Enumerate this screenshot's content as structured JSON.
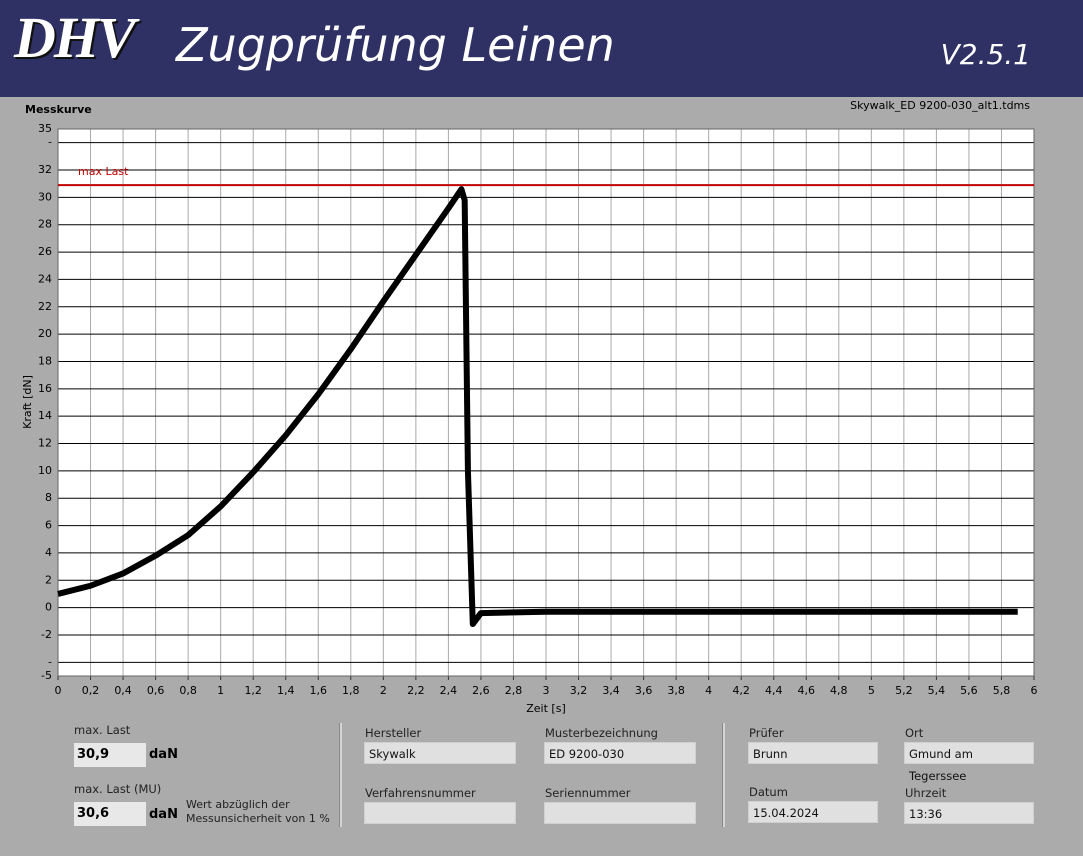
{
  "header": {
    "logo": "DHV",
    "title": "Zugprüfung Leinen",
    "version": "V2.5.1"
  },
  "chart_data": {
    "type": "line",
    "title": "Messkurve",
    "subtitle": "Skywalk_ED 9200-030_alt1.tdms",
    "x_label": "Zeit [s]",
    "y_label": "Kraft [dN]",
    "color": "#000000",
    "grid": true,
    "x": [
      0,
      0.2,
      0.4,
      0.6,
      0.8,
      1.0,
      1.2,
      1.4,
      1.6,
      1.8,
      2.0,
      2.2,
      2.4,
      2.48,
      2.5,
      2.52,
      2.55,
      2.6,
      3.0,
      3.5,
      4.0,
      4.5,
      5.0,
      5.5,
      5.9
    ],
    "values": [
      1.0,
      1.6,
      2.5,
      3.8,
      5.3,
      7.4,
      9.9,
      12.6,
      15.6,
      18.9,
      22.4,
      25.8,
      29.2,
      30.6,
      29.8,
      10,
      -1.2,
      -0.4,
      -0.3,
      -0.3,
      -0.3,
      -0.3,
      -0.3,
      -0.3,
      -0.3
    ],
    "xlim": [
      0,
      6
    ],
    "ylim": [
      -5,
      35
    ],
    "xticks": [
      0,
      {
        "value": 0.2,
        "label": "0,2"
      },
      {
        "value": 0.4,
        "label": "0,4"
      },
      {
        "value": 0.6,
        "label": "0,6"
      },
      {
        "value": 0.8,
        "label": "0,8"
      },
      1,
      {
        "value": 1.2,
        "label": "1,2"
      },
      {
        "value": 1.4,
        "label": "1,4"
      },
      {
        "value": 1.6,
        "label": "1,6"
      },
      {
        "value": 1.8,
        "label": "1,8"
      },
      2,
      {
        "value": 2.2,
        "label": "2,2"
      },
      {
        "value": 2.4,
        "label": "2,4"
      },
      {
        "value": 2.6,
        "label": "2,6"
      },
      {
        "value": 2.8,
        "label": "2,8"
      },
      3,
      {
        "value": 3.2,
        "label": "3,2"
      },
      {
        "value": 3.4,
        "label": "3,4"
      },
      {
        "value": 3.6,
        "label": "3,6"
      },
      {
        "value": 3.8,
        "label": "3,8"
      },
      4,
      {
        "value": 4.2,
        "label": "4,2"
      },
      {
        "value": 4.4,
        "label": "4,4"
      },
      {
        "value": 4.6,
        "label": "4,6"
      },
      {
        "value": 4.8,
        "label": "4,8"
      },
      5,
      {
        "value": 5.2,
        "label": "5,2"
      },
      {
        "value": 5.4,
        "label": "5,4"
      },
      {
        "value": 5.6,
        "label": "5,6"
      },
      {
        "value": 5.8,
        "label": "5,8"
      },
      6
    ],
    "yticks": [
      35,
      {
        "value": 34,
        "label": "-"
      },
      32,
      30,
      28,
      26,
      24,
      22,
      20,
      18,
      16,
      14,
      12,
      10,
      8,
      6,
      4,
      2,
      0,
      -2,
      {
        "value": -4,
        "label": "-"
      },
      -5
    ],
    "annotations": [
      {
        "label": "max Last",
        "value": 30.9,
        "color": "#c00000"
      }
    ]
  },
  "results": {
    "max_load": {
      "label": "max. Last",
      "value": "30,9",
      "unit": "daN"
    },
    "max_load_mu": {
      "label": "max. Last (MU)",
      "value": "30,6",
      "unit": "daN",
      "note": [
        "Wert abzüglich der",
        "Messunsicherheit von 1 %"
      ]
    }
  },
  "fields": [
    {
      "label": "Hersteller",
      "value": "Skywalk"
    },
    {
      "label": "Musterbezeichnung",
      "value": "ED 9200-030"
    },
    {
      "label": "Verfahrensnummer"
    },
    {
      "label": "Seriennummer"
    },
    {
      "label": "Prüfer",
      "value": "Brunn"
    },
    {
      "label": "Ort",
      "value": "Gmund am Tegerssee"
    },
    {
      "label": "Datum",
      "value": "15.04.2024"
    },
    {
      "label": "Uhrzeit",
      "value": "13:36"
    }
  ]
}
